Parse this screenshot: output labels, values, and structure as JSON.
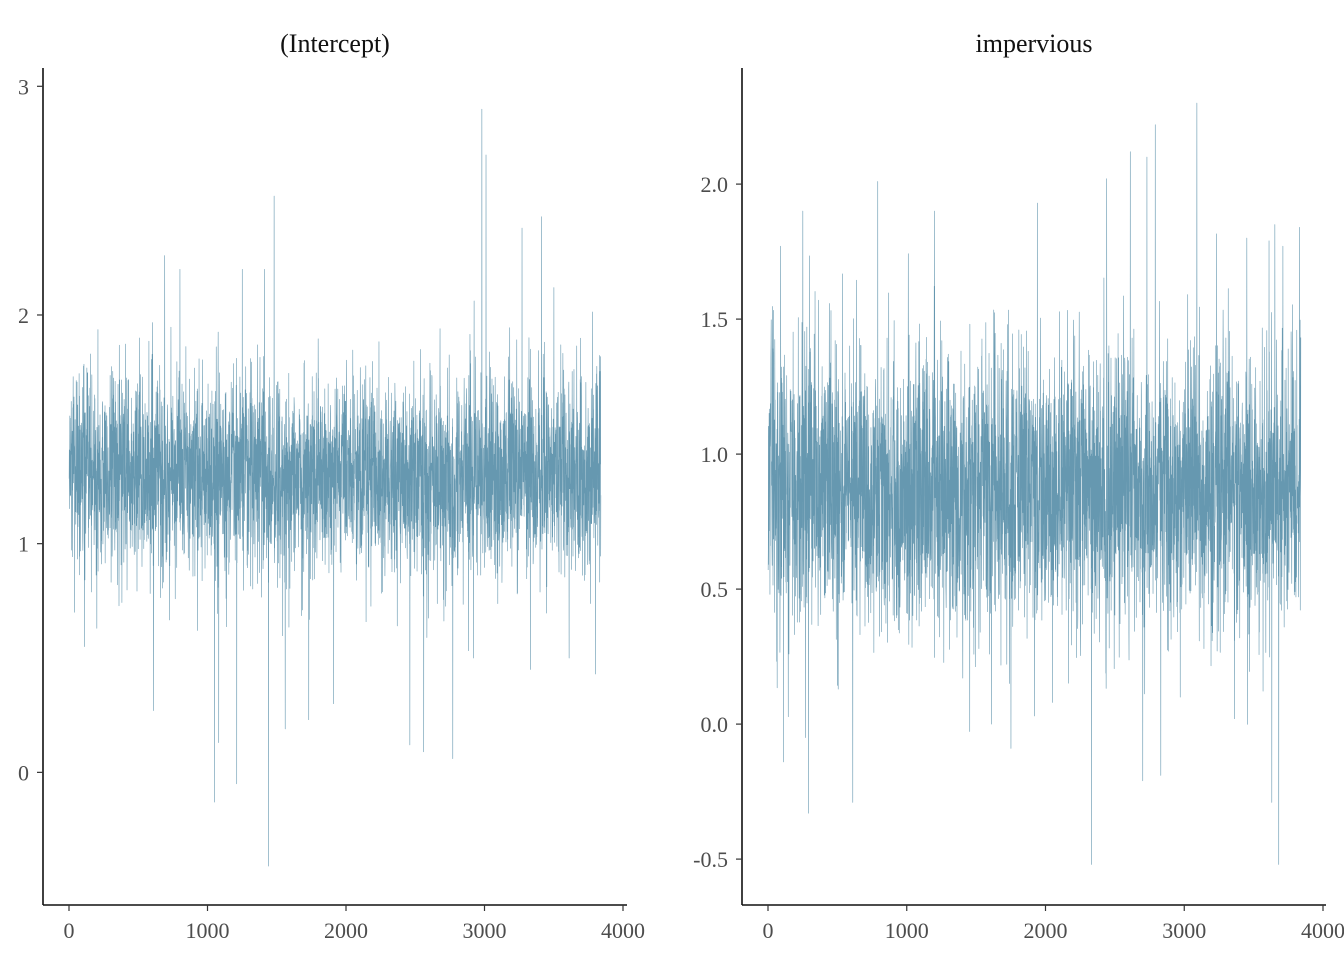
{
  "chart_data": [
    {
      "type": "line",
      "title": "(Intercept)",
      "xlabel": "",
      "ylabel": "",
      "xlim": [
        0,
        4000
      ],
      "ylim": [
        -0.58,
        3.08
      ],
      "xticks": [
        0,
        1000,
        2000,
        3000,
        4000
      ],
      "xtick_labels": [
        "0",
        "1000",
        "2000",
        "3000",
        "4000"
      ],
      "yticks": [
        0,
        1,
        2,
        3
      ],
      "ytick_labels": [
        "0",
        "1",
        "2",
        "3"
      ],
      "grid": false,
      "color": "#6698b0",
      "series": [
        {
          "n": 3840,
          "mean": 1.3,
          "sd": 0.22,
          "min": -0.41,
          "max": 2.9,
          "samples": [
            [
              2980,
              2.9
            ],
            [
              3010,
              2.7
            ],
            [
              1480,
              2.52
            ],
            [
              3410,
              2.43
            ],
            [
              3270,
              2.38
            ],
            [
              3270,
              2.38
            ],
            [
              1410,
              2.2
            ],
            [
              1440,
              2.11
            ],
            [
              1050,
              2.29
            ],
            [
              690,
              2.26
            ],
            [
              800,
              2.2
            ],
            [
              1250,
              2.2
            ],
            [
              3500,
              2.12
            ],
            [
              3840,
              2.2
            ],
            [
              200,
              2.18
            ],
            [
              1440,
              -0.41
            ],
            [
              1050,
              -0.13
            ],
            [
              1210,
              -0.05
            ],
            [
              1080,
              0.13
            ],
            [
              610,
              0.27
            ],
            [
              2770,
              0.06
            ],
            [
              2560,
              0.09
            ],
            [
              2460,
              0.12
            ],
            [
              1560,
              0.19
            ],
            [
              1730,
              0.23
            ],
            [
              1910,
              0.3
            ],
            [
              3800,
              0.43
            ],
            [
              3330,
              0.45
            ],
            [
              2920,
              0.5
            ],
            [
              110,
              0.55
            ],
            [
              3610,
              0.5
            ],
            [
              40,
              0.7
            ],
            [
              200,
              0.63
            ]
          ]
        }
      ]
    },
    {
      "type": "line",
      "title": "impervious",
      "xlabel": "",
      "ylabel": "",
      "xlim": [
        0,
        4000
      ],
      "ylim": [
        -0.67,
        2.43
      ],
      "xticks": [
        0,
        1000,
        2000,
        3000,
        4000
      ],
      "xtick_labels": [
        "0",
        "1000",
        "2000",
        "3000",
        "4000"
      ],
      "yticks": [
        -0.5,
        0.0,
        0.5,
        1.0,
        1.5,
        2.0
      ],
      "ytick_labels": [
        "-0.5",
        "0.0",
        "0.5",
        "1.0",
        "1.5",
        "2.0"
      ],
      "grid": false,
      "color": "#6698b0",
      "series": [
        {
          "n": 3840,
          "mean": 0.87,
          "sd": 0.26,
          "min": -0.53,
          "max": 2.3,
          "samples": [
            [
              3090,
              2.3
            ],
            [
              2790,
              2.22
            ],
            [
              2730,
              2.1
            ],
            [
              2610,
              2.12
            ],
            [
              2440,
              2.02
            ],
            [
              790,
              2.01
            ],
            [
              1940,
              1.93
            ],
            [
              250,
              1.9
            ],
            [
              1200,
              1.9
            ],
            [
              3830,
              1.84
            ],
            [
              3450,
              1.8
            ],
            [
              3610,
              1.79
            ],
            [
              3710,
              1.77
            ],
            [
              90,
              1.77
            ],
            [
              2330,
              -0.52
            ],
            [
              3680,
              -0.52
            ],
            [
              290,
              -0.33
            ],
            [
              610,
              -0.29
            ],
            [
              3630,
              -0.29
            ],
            [
              2830,
              -0.19
            ],
            [
              2700,
              -0.21
            ],
            [
              110,
              -0.14
            ],
            [
              270,
              -0.05
            ],
            [
              1610,
              0.0
            ],
            [
              1750,
              -0.09
            ],
            [
              1920,
              0.03
            ],
            [
              2050,
              0.08
            ],
            [
              3840,
              0.1
            ],
            [
              2970,
              0.1
            ],
            [
              3360,
              0.02
            ]
          ]
        }
      ]
    }
  ]
}
